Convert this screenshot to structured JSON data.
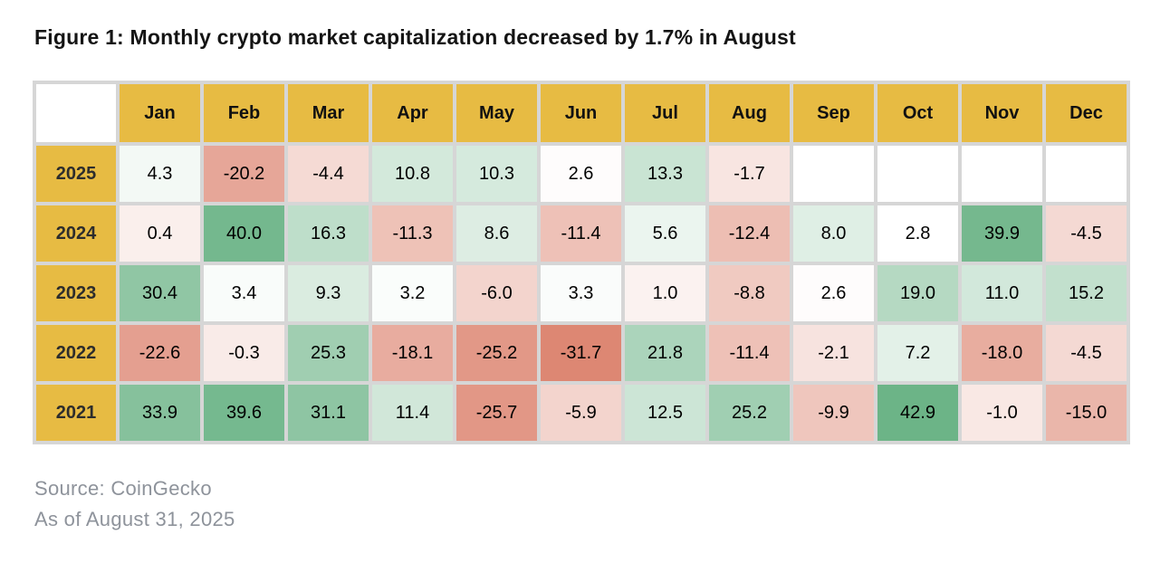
{
  "title": "Figure 1: Monthly crypto market capitalization decreased by 1.7% in August",
  "footer": {
    "source": "Source: CoinGecko",
    "as_of": "As of August 31, 2025"
  },
  "colors": {
    "header_bg": "#E7BB43",
    "grid_gap": "#D6D6D6",
    "positive_end": "#6CB487",
    "negative_end": "#DD8672",
    "neutral": "#FFFFFF",
    "midpoint_value": 2.8,
    "max_value": 43,
    "min_value": -32,
    "scale_exponent": 0.75
  },
  "chart_data": {
    "type": "heatmap",
    "title": "Figure 1: Monthly crypto market capitalization decreased by 1.7% in August",
    "unit": "percent monthly change",
    "columns": [
      "Jan",
      "Feb",
      "Mar",
      "Apr",
      "May",
      "Jun",
      "Jul",
      "Aug",
      "Sep",
      "Oct",
      "Nov",
      "Dec"
    ],
    "rows": [
      {
        "year": "2025",
        "values": [
          4.3,
          -20.2,
          -4.4,
          10.8,
          10.3,
          2.6,
          13.3,
          -1.7,
          null,
          null,
          null,
          null
        ]
      },
      {
        "year": "2024",
        "values": [
          0.4,
          40.0,
          16.3,
          -11.3,
          8.6,
          -11.4,
          5.6,
          -12.4,
          8.0,
          2.8,
          39.9,
          -4.5
        ]
      },
      {
        "year": "2023",
        "values": [
          30.4,
          3.4,
          9.3,
          3.2,
          -6.0,
          3.3,
          1.0,
          -8.8,
          2.6,
          19.0,
          11.0,
          15.2
        ]
      },
      {
        "year": "2022",
        "values": [
          -22.6,
          -0.3,
          25.3,
          -18.1,
          -25.2,
          -31.7,
          21.8,
          -11.4,
          -2.1,
          7.2,
          -18.0,
          -4.5
        ]
      },
      {
        "year": "2021",
        "values": [
          33.9,
          39.6,
          31.1,
          11.4,
          -25.7,
          -5.9,
          12.5,
          25.2,
          -9.9,
          42.9,
          -1.0,
          -15.0
        ]
      }
    ],
    "legend_position": "none",
    "grid": true
  }
}
